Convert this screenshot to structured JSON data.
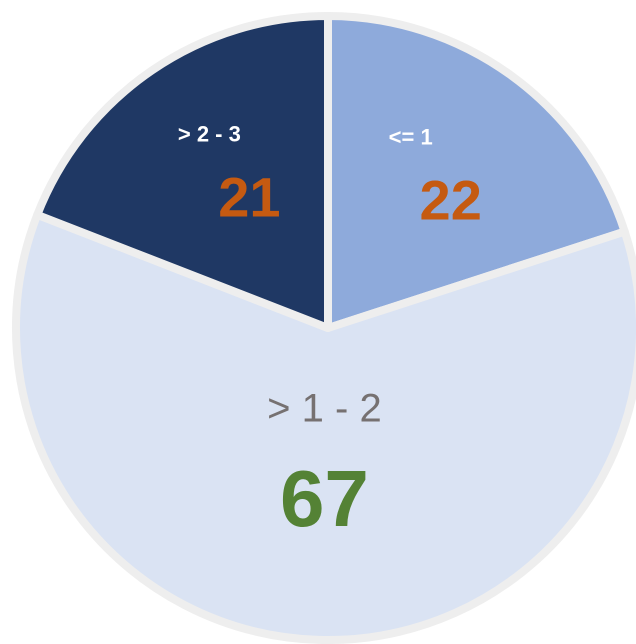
{
  "chart_data": {
    "type": "pie",
    "categories": [
      "<= 1",
      "> 1 - 2",
      "> 2 - 3"
    ],
    "values": [
      22,
      67,
      21
    ],
    "colors": [
      "#8eaadb",
      "#dae3f3",
      "#1f3864"
    ],
    "label_colors": [
      "#ffffff",
      "#767171",
      "#ffffff"
    ],
    "value_colors": [
      "#c55a11",
      "#548235",
      "#c55a11"
    ],
    "start_angle": 0,
    "direction": "clockwise"
  }
}
